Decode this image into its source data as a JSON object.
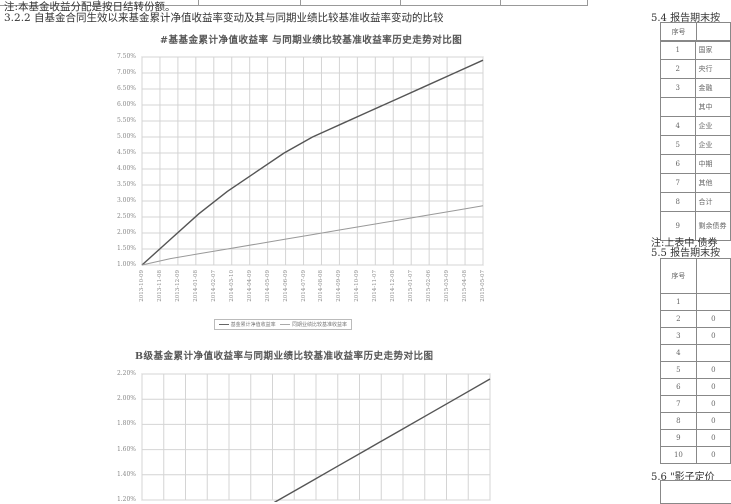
{
  "document": {
    "note": "注:本基金收益分配是按日结转份额。",
    "section_heading": "3.2.2 自基金合同生效以来基金累计净值收益率变动及其与同期业绩比较基准收益率变动的比较"
  },
  "chart1": {
    "title": "#基基金累计净值收益率 与同期业绩比较基准收益率历史走势对比图",
    "y_ticks": [
      "7.50%",
      "7.00%",
      "6.50%",
      "6.00%",
      "5.50%",
      "5.00%",
      "4.50%",
      "4.00%",
      "3.50%",
      "3.00%",
      "2.50%",
      "2.00%",
      "1.50%",
      "1.00%"
    ],
    "x_ticks": [
      "2013-10-09",
      "2013-11-08",
      "2013-12-09",
      "2014-01-08",
      "2014-02-07",
      "2014-03-10",
      "2014-04-09",
      "2014-05-09",
      "2014-06-09",
      "2014-07-09",
      "2014-08-08",
      "2014-09-09",
      "2014-10-09",
      "2014-11-07",
      "2014-12-08",
      "2015-01-07",
      "2015-02-06",
      "2015-03-09",
      "2015-04-08",
      "2015-05-07"
    ],
    "legend": [
      "基金累计净值收益率",
      "同期业绩比较基准收益率"
    ]
  },
  "chart2": {
    "title": "B级基金累计净值收益率与同期业绩比较基准收益率历史走势对比图",
    "y_ticks": [
      "2.20%",
      "2.00%",
      "1.80%",
      "1.60%",
      "1.40%",
      "1.20%"
    ]
  },
  "chart_data": [
    {
      "type": "line",
      "ylim": [
        1.0,
        7.5
      ],
      "series": [
        {
          "name": "基金累计净值收益率",
          "values": [
            1.0,
            1.8,
            2.6,
            3.3,
            3.9,
            4.5,
            5.0,
            5.4,
            5.8,
            6.2,
            6.6,
            7.0,
            7.4
          ]
        },
        {
          "name": "同期业绩比较基准收益率",
          "values": [
            1.0,
            1.2,
            1.35,
            1.5,
            1.65,
            1.8,
            1.95,
            2.1,
            2.25,
            2.4,
            2.55,
            2.7,
            2.85
          ]
        }
      ]
    },
    {
      "type": "line",
      "ylim": [
        1.2,
        2.2
      ],
      "series": [
        {
          "name": "",
          "values": [
            1.18,
            1.32,
            1.46,
            1.6,
            1.74,
            1.88,
            2.02,
            2.16
          ]
        }
      ]
    }
  ],
  "right": {
    "h54": "5.4 报告期末按",
    "table1": {
      "col1": "序号",
      "rows": [
        {
          "no": "1",
          "name": "国家"
        },
        {
          "no": "2",
          "name": "央行"
        },
        {
          "no": "3",
          "name": "金融"
        },
        {
          "no": "",
          "name": "其中"
        },
        {
          "no": "4",
          "name": "企业"
        },
        {
          "no": "5",
          "name": "企业"
        },
        {
          "no": "6",
          "name": "中期"
        },
        {
          "no": "7",
          "name": "其他"
        },
        {
          "no": "8",
          "name": "合计"
        },
        {
          "no": "9",
          "name": "剩余债券"
        }
      ]
    },
    "note2": "注:上表中,债券",
    "h55": "5.5 报告期末按",
    "table2": {
      "col1": "序号",
      "rows": [
        "1",
        "2",
        "3",
        "4",
        "5",
        "6",
        "7",
        "8",
        "9",
        "10"
      ],
      "col2": [
        "",
        "0",
        "0",
        "",
        "0",
        "0",
        "0",
        "0",
        "0",
        "0"
      ]
    },
    "h56": "5.6 \"影子定价"
  }
}
